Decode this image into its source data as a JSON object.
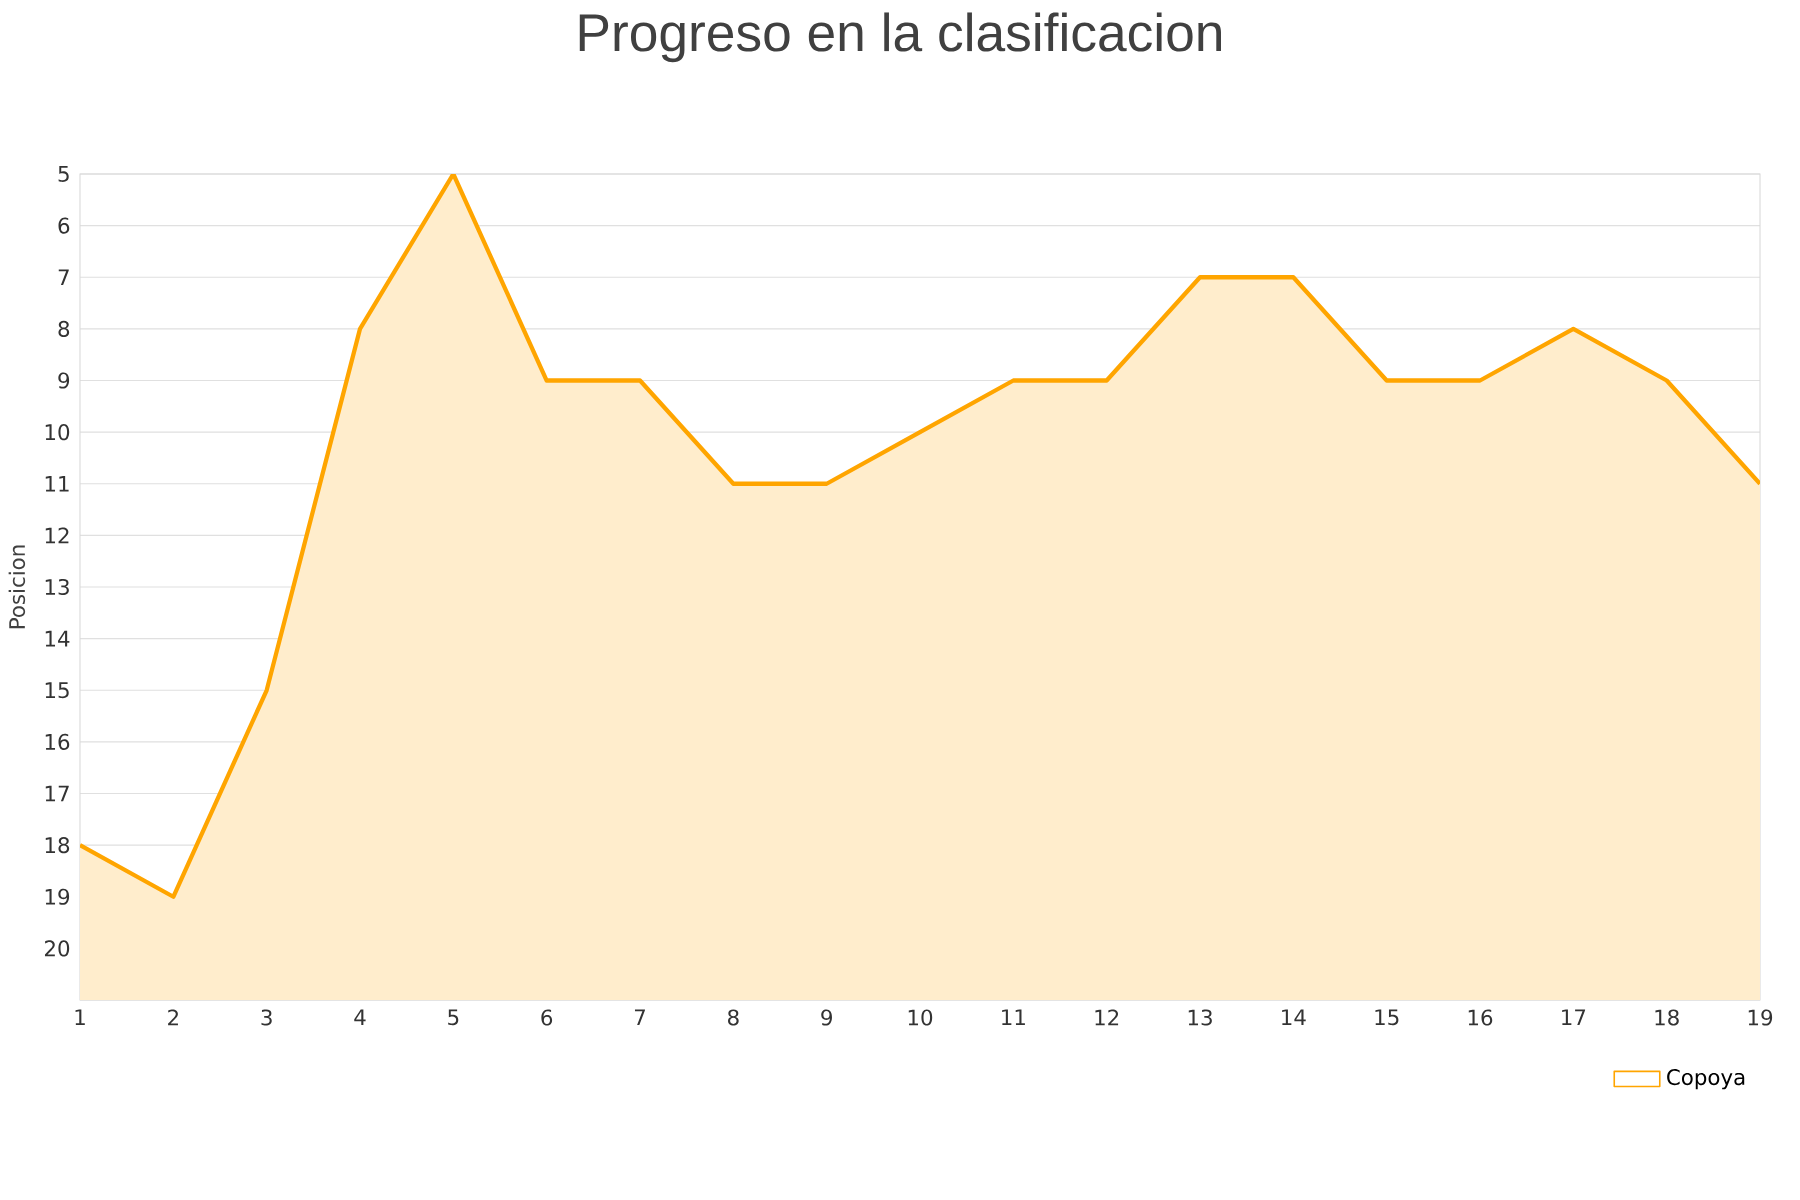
{
  "chart_data": {
    "type": "line",
    "title": "Progreso en la clasificacion",
    "ylabel": "Posicion",
    "x": [
      1,
      2,
      3,
      4,
      5,
      6,
      7,
      8,
      9,
      10,
      11,
      12,
      13,
      14,
      15,
      16,
      17,
      18,
      19
    ],
    "series": [
      {
        "name": "Copoya",
        "color": "#ffa500",
        "values": [
          18,
          19,
          15,
          8,
          5,
          9,
          9,
          11,
          11,
          10,
          9,
          9,
          7,
          7,
          9,
          9,
          8,
          9,
          11
        ],
        "lower": [
          21,
          21,
          21,
          21,
          21,
          21,
          21,
          21,
          21,
          21,
          21,
          21,
          21,
          21,
          21,
          21,
          21,
          21,
          21
        ],
        "upper": [
          18,
          19,
          15,
          8,
          5,
          9,
          9,
          11,
          11,
          10,
          9,
          9,
          7,
          7,
          9,
          9,
          8,
          9,
          11
        ]
      }
    ],
    "xlim": [
      1,
      19
    ],
    "xticks": [
      1,
      2,
      3,
      4,
      5,
      6,
      7,
      8,
      9,
      10,
      11,
      12,
      13,
      14,
      15,
      16,
      17,
      18,
      19
    ],
    "ylim": [
      21,
      5
    ],
    "yticks": [
      5,
      6,
      7,
      8,
      9,
      10,
      11,
      12,
      13,
      14,
      15,
      16,
      17,
      18,
      19,
      20,
      {
        "value": 21,
        "label": null
      }
    ],
    "grid": "y",
    "legend": "bottom right"
  }
}
